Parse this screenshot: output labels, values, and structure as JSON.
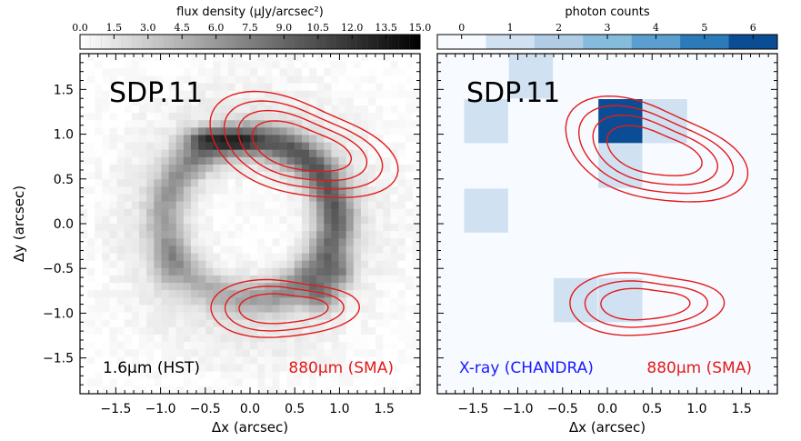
{
  "chart_data": [
    {
      "type": "heatmap",
      "name": "SDP.11 HST 1.6um image with SMA 880um contours",
      "title": "SDP.11",
      "xlabel": "Δx (arcsec)",
      "ylabel": "Δy (arcsec)",
      "xlim": [
        -1.9,
        1.9
      ],
      "ylim": [
        -1.9,
        1.9
      ],
      "xticks": [
        -1.5,
        -1.0,
        -0.5,
        0.0,
        0.5,
        1.0,
        1.5
      ],
      "xtick_labels": [
        "−1.5",
        "−1.0",
        "−0.5",
        "0.0",
        "0.5",
        "1.0",
        "1.5"
      ],
      "yticks": [
        -1.5,
        -1.0,
        -0.5,
        0.0,
        0.5,
        1.0,
        1.5
      ],
      "ytick_labels": [
        "−1.5",
        "−1.0",
        "−0.5",
        "0.0",
        "0.5",
        "1.0",
        "1.5"
      ],
      "colorbar": {
        "label": "flux density (μJy/arcsec²)",
        "ticks": [
          0.0,
          1.5,
          3.0,
          4.5,
          6.0,
          7.5,
          9.0,
          10.5,
          12.0,
          13.5,
          15.0
        ],
        "tick_labels": [
          "0.0",
          "1.5",
          "3.0",
          "4.5",
          "6.0",
          "7.5",
          "9.0",
          "10.5",
          "12.0",
          "13.5",
          "15.0"
        ],
        "range": [
          0,
          15
        ],
        "cmap": "greys"
      },
      "image_model": {
        "description": "Einstein ring of gaussian-profile emission with bright knots",
        "ring_center": [
          0.0,
          0.05
        ],
        "ring_radius": [
          0.95,
          0.88
        ],
        "ring_width": 0.14,
        "ring_peak": 8.5,
        "knots": [
          {
            "x": -0.5,
            "y": 0.95,
            "sx": 0.18,
            "sy": 0.08,
            "amp": 6.5
          },
          {
            "x": -0.1,
            "y": 0.92,
            "sx": 0.15,
            "sy": 0.08,
            "amp": 4.0
          },
          {
            "x": 0.8,
            "y": -0.8,
            "sx": 0.12,
            "sy": 0.12,
            "amp": 6.0
          },
          {
            "x": 1.0,
            "y": -0.55,
            "sx": 0.1,
            "sy": 0.12,
            "amp": 5.0
          },
          {
            "x": -0.9,
            "y": -0.45,
            "sx": 0.12,
            "sy": 0.2,
            "amp": 3.0
          }
        ],
        "diffuse_halo": 1.2
      },
      "contours": [
        {
          "cx": 0.55,
          "cy": 0.85,
          "rx": [
            0.95,
            0.8,
            0.65,
            0.5
          ],
          "ry": [
            0.58,
            0.48,
            0.38,
            0.27
          ]
        },
        {
          "cx": 0.35,
          "cy": -0.95,
          "rx": [
            0.75,
            0.6,
            0.45
          ],
          "ry": [
            0.35,
            0.27,
            0.18
          ]
        }
      ],
      "contour_color": "#e31a1c",
      "annotations": [
        "1.6μm (HST)",
        "880μm (SMA)"
      ]
    },
    {
      "type": "heatmap",
      "name": "SDP.11 Chandra X-ray photon counts with SMA 880um contours",
      "title": "SDP.11",
      "xlabel": "Δx (arcsec)",
      "ylabel": "",
      "xlim": [
        -1.9,
        1.9
      ],
      "ylim": [
        -1.9,
        1.9
      ],
      "xticks": [
        -1.5,
        -1.0,
        -0.5,
        0.0,
        0.5,
        1.0,
        1.5
      ],
      "xtick_labels": [
        "−1.5",
        "−1.0",
        "−0.5",
        "0.0",
        "0.5",
        "1.0",
        "1.5"
      ],
      "pixel_size": 0.492,
      "colorbar": {
        "label": "photon counts",
        "ticks": [
          0,
          1,
          2,
          3,
          4,
          5,
          6
        ],
        "tick_labels": [
          "0",
          "1",
          "2",
          "3",
          "4",
          "5",
          "6"
        ],
        "range": [
          -0.5,
          6.5
        ],
        "cmap": "blues"
      },
      "pixels": [
        {
          "x0": -1.1,
          "y0": 1.4,
          "count": 1
        },
        {
          "x0": -1.6,
          "y0": 0.9,
          "count": 1
        },
        {
          "x0": -0.1,
          "y0": 0.9,
          "count": 6
        },
        {
          "x0": 0.4,
          "y0": 0.9,
          "count": 1
        },
        {
          "x0": -0.1,
          "y0": 0.4,
          "count": 1
        },
        {
          "x0": -1.6,
          "y0": -0.1,
          "count": 1
        },
        {
          "x0": -0.6,
          "y0": -1.1,
          "count": 1
        },
        {
          "x0": -0.1,
          "y0": -1.1,
          "count": 1
        }
      ],
      "contours": [
        {
          "cx": 0.5,
          "cy": 0.8,
          "rx": [
            0.92,
            0.78,
            0.63,
            0.48
          ],
          "ry": [
            0.58,
            0.48,
            0.38,
            0.27
          ]
        },
        {
          "cx": 0.4,
          "cy": -0.9,
          "rx": [
            0.78,
            0.62,
            0.45
          ],
          "ry": [
            0.38,
            0.28,
            0.19
          ]
        }
      ],
      "contour_color": "#e31a1c",
      "annotations": [
        "X-ray (CHANDRA)",
        "880μm (SMA)"
      ]
    }
  ],
  "colors": {
    "contour": "#e31a1c",
    "xray_label": "#1a1aff",
    "sma_label": "#e31a1c",
    "axes": "#000000"
  }
}
